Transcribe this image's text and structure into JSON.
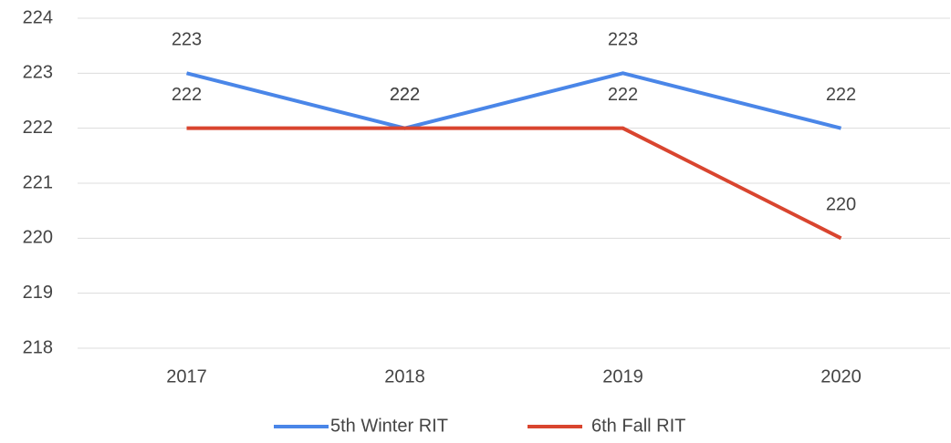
{
  "chart_data": {
    "type": "line",
    "categories": [
      "2017",
      "2018",
      "2019",
      "2020"
    ],
    "series": [
      {
        "name": "5th Winter RIT",
        "color": "#4a86e8",
        "values": [
          223,
          222,
          223,
          222
        ]
      },
      {
        "name": "6th Fall RIT",
        "color": "#d9452f",
        "values": [
          222,
          222,
          222,
          220
        ]
      }
    ],
    "ylim": [
      218,
      224
    ],
    "yticks": [
      218,
      219,
      220,
      221,
      222,
      223,
      224
    ],
    "grid": true,
    "legend": "bottom"
  }
}
